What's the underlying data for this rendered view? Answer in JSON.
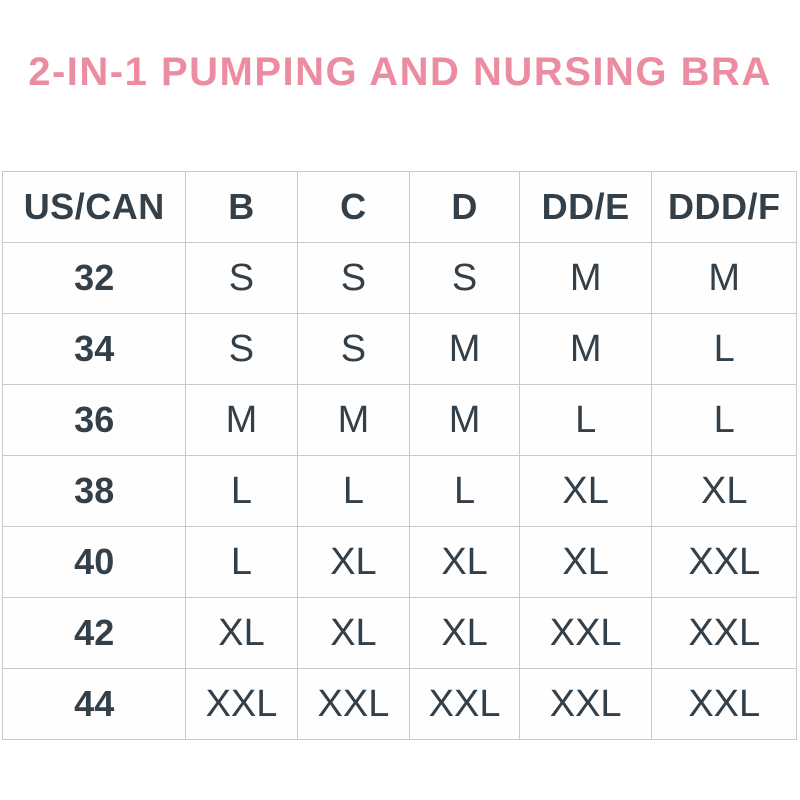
{
  "title": "2-IN-1 PUMPING AND NURSING BRA",
  "colors": {
    "title_pink": "#ec8ca0",
    "text_dark": "#333f49",
    "grid_border": "#c9c9c9",
    "background": "#ffffff"
  },
  "table": {
    "columns": [
      "US/CAN",
      "B",
      "C",
      "D",
      "DD/E",
      "DDD/F"
    ],
    "rows": [
      [
        "32",
        "S",
        "S",
        "S",
        "M",
        "M"
      ],
      [
        "34",
        "S",
        "S",
        "M",
        "M",
        "L"
      ],
      [
        "36",
        "M",
        "M",
        "M",
        "L",
        "L"
      ],
      [
        "38",
        "L",
        "L",
        "L",
        "XL",
        "XL"
      ],
      [
        "40",
        "L",
        "XL",
        "XL",
        "XL",
        "XXL"
      ],
      [
        "42",
        "XL",
        "XL",
        "XL",
        "XXL",
        "XXL"
      ],
      [
        "44",
        "XXL",
        "XXL",
        "XXL",
        "XXL",
        "XXL"
      ]
    ]
  }
}
